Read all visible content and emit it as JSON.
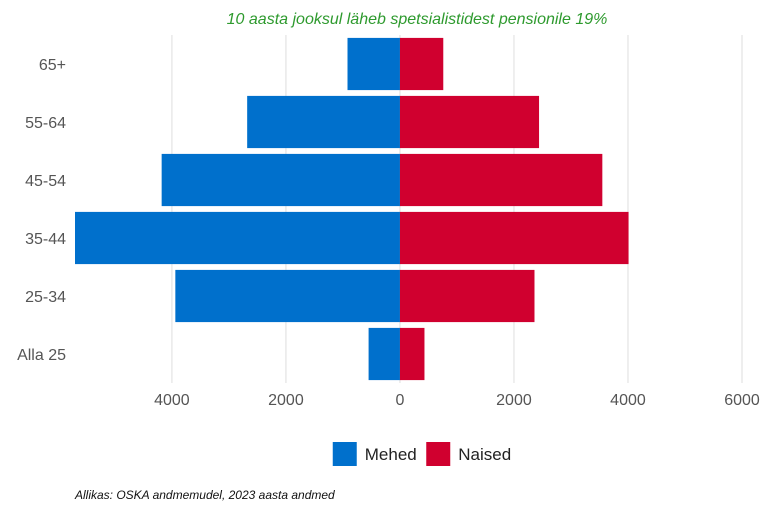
{
  "chart_data": {
    "type": "bar",
    "orientation": "horizontal-population-pyramid",
    "title": "10 aasta jooksul läheb spetsialistidest pensionile 19%",
    "source": "Allikas: OSKA andmemudel, 2023 aasta andmed",
    "categories": [
      "65+",
      "55-64",
      "45-54",
      "35-44",
      "25-34",
      "Alla 25"
    ],
    "series": [
      {
        "name": "Mehed",
        "color": "#0070cc",
        "side": "left",
        "values": [
          920,
          2680,
          4180,
          5700,
          3940,
          550
        ]
      },
      {
        "name": "Naised",
        "color": "#d0002f",
        "side": "right",
        "values": [
          760,
          2440,
          3550,
          4010,
          2360,
          430
        ]
      }
    ],
    "xlim": [
      -5700,
      6000
    ],
    "xticks": [
      {
        "value": -4000,
        "label": "4000"
      },
      {
        "value": -2000,
        "label": "2000"
      },
      {
        "value": 0,
        "label": "0"
      },
      {
        "value": 2000,
        "label": "2000"
      },
      {
        "value": 4000,
        "label": "4000"
      },
      {
        "value": 6000,
        "label": "6000"
      }
    ],
    "grid": true,
    "legend_position": "bottom-center"
  }
}
